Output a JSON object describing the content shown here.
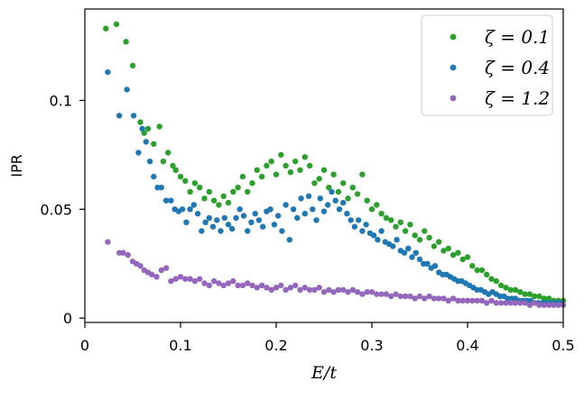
{
  "chart_data": {
    "type": "scatter",
    "title": "",
    "xlabel": "E/t",
    "ylabel": "IPR",
    "xlim": [
      0,
      0.5
    ],
    "ylim": [
      -0.002,
      0.142
    ],
    "xticks": [
      0,
      0.1,
      0.2,
      0.3,
      0.4,
      0.5
    ],
    "xtick_labels": [
      "0",
      "0.1",
      "0.2",
      "0.3",
      "0.4",
      "0.5"
    ],
    "yticks": [
      0,
      0.05,
      0.1
    ],
    "ytick_labels": [
      "0",
      "0.05",
      "0.1"
    ],
    "grid": false,
    "legend_position": "top-right",
    "series": [
      {
        "name": "ζ = 0.1",
        "color": "#2ca02c",
        "x": [
          0.022,
          0.033,
          0.043,
          0.05,
          0.058,
          0.062,
          0.066,
          0.072,
          0.078,
          0.082,
          0.087,
          0.092,
          0.095,
          0.1,
          0.105,
          0.11,
          0.115,
          0.12,
          0.125,
          0.13,
          0.135,
          0.14,
          0.145,
          0.15,
          0.155,
          0.16,
          0.165,
          0.17,
          0.175,
          0.18,
          0.185,
          0.19,
          0.195,
          0.2,
          0.205,
          0.21,
          0.215,
          0.22,
          0.225,
          0.23,
          0.235,
          0.24,
          0.245,
          0.25,
          0.255,
          0.26,
          0.265,
          0.27,
          0.275,
          0.28,
          0.285,
          0.29,
          0.295,
          0.3,
          0.305,
          0.31,
          0.315,
          0.32,
          0.325,
          0.33,
          0.335,
          0.34,
          0.345,
          0.35,
          0.355,
          0.36,
          0.365,
          0.37,
          0.375,
          0.38,
          0.385,
          0.39,
          0.395,
          0.4,
          0.405,
          0.41,
          0.415,
          0.42,
          0.425,
          0.43,
          0.435,
          0.44,
          0.445,
          0.45,
          0.455,
          0.46,
          0.465,
          0.47,
          0.475,
          0.48,
          0.485,
          0.49,
          0.495,
          0.5
        ],
        "y": [
          0.133,
          0.135,
          0.127,
          0.116,
          0.09,
          0.085,
          0.087,
          0.08,
          0.088,
          0.072,
          0.076,
          0.07,
          0.068,
          0.065,
          0.063,
          0.058,
          0.062,
          0.06,
          0.055,
          0.058,
          0.054,
          0.052,
          0.056,
          0.053,
          0.058,
          0.06,
          0.065,
          0.058,
          0.062,
          0.068,
          0.065,
          0.07,
          0.072,
          0.066,
          0.075,
          0.07,
          0.067,
          0.072,
          0.068,
          0.074,
          0.07,
          0.062,
          0.064,
          0.068,
          0.06,
          0.066,
          0.058,
          0.062,
          0.055,
          0.06,
          0.057,
          0.066,
          0.054,
          0.05,
          0.052,
          0.048,
          0.046,
          0.045,
          0.042,
          0.044,
          0.04,
          0.043,
          0.038,
          0.036,
          0.04,
          0.037,
          0.033,
          0.035,
          0.031,
          0.032,
          0.029,
          0.03,
          0.027,
          0.028,
          0.024,
          0.022,
          0.022,
          0.02,
          0.018,
          0.017,
          0.015,
          0.014,
          0.013,
          0.013,
          0.012,
          0.011,
          0.011,
          0.01,
          0.01,
          0.009,
          0.009,
          0.008,
          0.008,
          0.008
        ]
      },
      {
        "name": "ζ = 0.4",
        "color": "#1f77b4",
        "x": [
          0.024,
          0.036,
          0.044,
          0.051,
          0.056,
          0.06,
          0.064,
          0.068,
          0.072,
          0.076,
          0.08,
          0.085,
          0.09,
          0.094,
          0.098,
          0.102,
          0.106,
          0.11,
          0.114,
          0.118,
          0.122,
          0.126,
          0.13,
          0.134,
          0.138,
          0.142,
          0.146,
          0.15,
          0.154,
          0.158,
          0.162,
          0.166,
          0.17,
          0.174,
          0.178,
          0.182,
          0.186,
          0.19,
          0.194,
          0.198,
          0.202,
          0.206,
          0.21,
          0.214,
          0.218,
          0.222,
          0.226,
          0.23,
          0.234,
          0.238,
          0.242,
          0.246,
          0.25,
          0.254,
          0.258,
          0.262,
          0.266,
          0.27,
          0.274,
          0.278,
          0.282,
          0.286,
          0.29,
          0.294,
          0.298,
          0.302,
          0.306,
          0.31,
          0.314,
          0.318,
          0.322,
          0.326,
          0.33,
          0.334,
          0.338,
          0.342,
          0.346,
          0.35,
          0.354,
          0.358,
          0.362,
          0.366,
          0.37,
          0.374,
          0.378,
          0.382,
          0.386,
          0.39,
          0.394,
          0.398,
          0.402,
          0.406,
          0.41,
          0.414,
          0.418,
          0.422,
          0.426,
          0.43,
          0.434,
          0.438,
          0.442,
          0.446,
          0.45,
          0.454,
          0.458,
          0.462,
          0.466,
          0.47,
          0.474,
          0.478,
          0.482,
          0.486,
          0.49,
          0.494,
          0.498
        ],
        "y": [
          0.113,
          0.093,
          0.105,
          0.093,
          0.076,
          0.087,
          0.081,
          0.072,
          0.065,
          0.06,
          0.06,
          0.054,
          0.054,
          0.05,
          0.049,
          0.05,
          0.044,
          0.05,
          0.052,
          0.048,
          0.04,
          0.044,
          0.046,
          0.042,
          0.045,
          0.04,
          0.046,
          0.043,
          0.041,
          0.046,
          0.05,
          0.047,
          0.04,
          0.044,
          0.048,
          0.045,
          0.042,
          0.049,
          0.05,
          0.043,
          0.047,
          0.04,
          0.052,
          0.036,
          0.05,
          0.046,
          0.055,
          0.048,
          0.056,
          0.05,
          0.045,
          0.055,
          0.049,
          0.052,
          0.058,
          0.054,
          0.05,
          0.053,
          0.048,
          0.045,
          0.042,
          0.045,
          0.04,
          0.043,
          0.039,
          0.038,
          0.036,
          0.04,
          0.035,
          0.034,
          0.033,
          0.036,
          0.031,
          0.03,
          0.032,
          0.028,
          0.03,
          0.027,
          0.025,
          0.025,
          0.023,
          0.024,
          0.021,
          0.02,
          0.02,
          0.019,
          0.018,
          0.017,
          0.017,
          0.016,
          0.015,
          0.014,
          0.013,
          0.013,
          0.012,
          0.011,
          0.012,
          0.011,
          0.01,
          0.01,
          0.009,
          0.009,
          0.009,
          0.008,
          0.008,
          0.008,
          0.008,
          0.007,
          0.007,
          0.007,
          0.007,
          0.007,
          0.007,
          0.007,
          0.007
        ]
      },
      {
        "name": "ζ = 1.2",
        "color": "#9467bd",
        "x": [
          0.024,
          0.036,
          0.04,
          0.045,
          0.05,
          0.054,
          0.058,
          0.062,
          0.066,
          0.07,
          0.075,
          0.08,
          0.085,
          0.09,
          0.095,
          0.1,
          0.105,
          0.11,
          0.115,
          0.12,
          0.125,
          0.13,
          0.135,
          0.14,
          0.145,
          0.15,
          0.155,
          0.16,
          0.165,
          0.17,
          0.175,
          0.18,
          0.185,
          0.19,
          0.195,
          0.2,
          0.205,
          0.21,
          0.215,
          0.22,
          0.225,
          0.23,
          0.235,
          0.24,
          0.245,
          0.25,
          0.255,
          0.26,
          0.265,
          0.27,
          0.275,
          0.28,
          0.285,
          0.29,
          0.295,
          0.3,
          0.305,
          0.31,
          0.315,
          0.32,
          0.325,
          0.33,
          0.335,
          0.34,
          0.345,
          0.35,
          0.355,
          0.36,
          0.365,
          0.37,
          0.375,
          0.38,
          0.385,
          0.39,
          0.395,
          0.4,
          0.405,
          0.41,
          0.415,
          0.42,
          0.425,
          0.43,
          0.435,
          0.44,
          0.445,
          0.45,
          0.455,
          0.46,
          0.465,
          0.47,
          0.475,
          0.48,
          0.485,
          0.49,
          0.495,
          0.5
        ],
        "y": [
          0.035,
          0.03,
          0.03,
          0.029,
          0.026,
          0.025,
          0.024,
          0.022,
          0.021,
          0.02,
          0.019,
          0.022,
          0.023,
          0.017,
          0.018,
          0.019,
          0.018,
          0.018,
          0.017,
          0.018,
          0.016,
          0.015,
          0.017,
          0.016,
          0.015,
          0.016,
          0.017,
          0.015,
          0.015,
          0.016,
          0.015,
          0.014,
          0.015,
          0.014,
          0.013,
          0.014,
          0.015,
          0.013,
          0.014,
          0.015,
          0.013,
          0.014,
          0.013,
          0.013,
          0.014,
          0.012,
          0.013,
          0.012,
          0.013,
          0.013,
          0.012,
          0.013,
          0.012,
          0.011,
          0.012,
          0.012,
          0.011,
          0.011,
          0.011,
          0.01,
          0.011,
          0.01,
          0.01,
          0.01,
          0.009,
          0.01,
          0.009,
          0.01,
          0.009,
          0.009,
          0.009,
          0.008,
          0.009,
          0.008,
          0.008,
          0.008,
          0.008,
          0.008,
          0.008,
          0.007,
          0.008,
          0.007,
          0.007,
          0.007,
          0.007,
          0.007,
          0.007,
          0.007,
          0.006,
          0.007,
          0.006,
          0.006,
          0.006,
          0.006,
          0.006,
          0.006
        ]
      }
    ]
  }
}
